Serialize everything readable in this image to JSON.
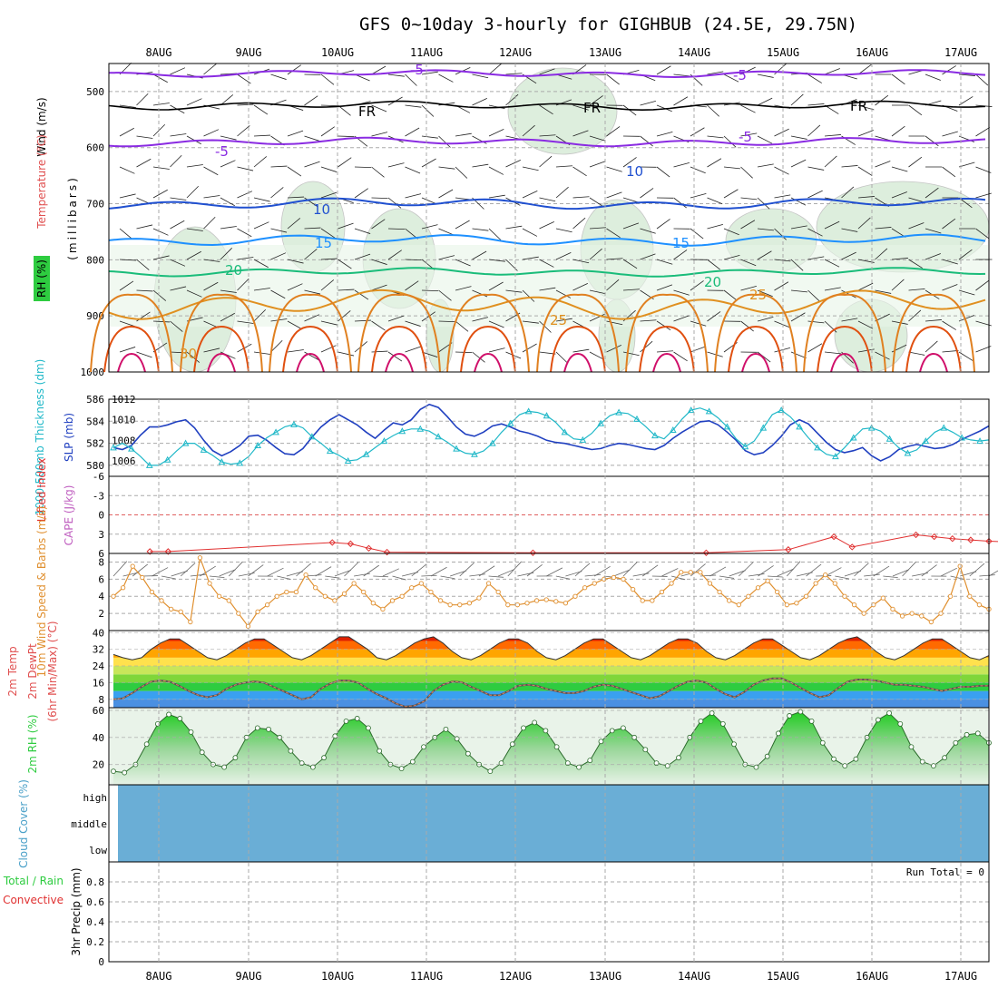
{
  "title": "GFS 0~10day 3-hourly for GIGHBUB (24.5E, 29.75N)",
  "dates": [
    "8AUG",
    "9AUG",
    "10AUG",
    "11AUG",
    "12AUG",
    "13AUG",
    "14AUG",
    "15AUG",
    "16AUG",
    "17AUG"
  ],
  "colors": {
    "temp_label": "#e05050",
    "wind_label": "#000000",
    "rh_label": "#2ecc40",
    "thickness": "#20b8c8",
    "slp": "#2040c0",
    "cape": "#c060c0",
    "lifted": "#e03030",
    "wind10": "#e09030",
    "cloud_fill": "#6aaed6",
    "rh2m": "#2ecc40",
    "precip_total": "#2ecc40",
    "precip_conv": "#e03030"
  },
  "chart_data": [
    {
      "panel": "upper-air",
      "type": "heatmap",
      "labels": {
        "wind": "Wind (m/s)",
        "temp": "Temperature (°C)",
        "rh": "RH (%)",
        "pressure": "(millibars)"
      },
      "y_ticks": [
        "500",
        "600",
        "700",
        "800",
        "900",
        "1000"
      ],
      "ylim": [
        1000,
        450
      ],
      "isotherm_labels": [
        {
          "text": "-5",
          "level": "~470"
        },
        {
          "text": "FR",
          "level": "~525"
        },
        {
          "text": "-5",
          "level": "~585"
        },
        {
          "text": "10",
          "level": "~700"
        },
        {
          "text": "15",
          "level": "~765"
        },
        {
          "text": "20",
          "level": "~815"
        },
        {
          "text": "25",
          "level": "~870"
        },
        {
          "text": "30",
          "level": "RH"
        }
      ]
    },
    {
      "panel": "thickness-slp",
      "type": "line",
      "labels": {
        "thickness": "1000-500mb Thickness (dm)",
        "slp": "SLP (mb)"
      },
      "left_ticks": [
        "580",
        "582",
        "584",
        "586"
      ],
      "right_ticks": [
        "1006",
        "1008",
        "1010",
        "1012"
      ],
      "ylim_thickness": [
        579,
        586
      ],
      "ylim_slp": [
        1004.5,
        1012
      ],
      "series": [
        {
          "name": "1000-500mb Thickness (dm)",
          "values": [
            581.6,
            582,
            581.5,
            580.8,
            580,
            580,
            580.5,
            581.3,
            582,
            582,
            581.4,
            580.9,
            580.3,
            580.1,
            580.2,
            580.8,
            581.8,
            582.5,
            583,
            583.5,
            583.7,
            583.4,
            582.6,
            582,
            581.3,
            580.9,
            580.4,
            580.5,
            581,
            581.6,
            582.2,
            582.7,
            583.1,
            583.3,
            583.3,
            583.1,
            582.6,
            582.1,
            581.5,
            581.1,
            581,
            581.3,
            582,
            583,
            583.8,
            584.6,
            584.9,
            584.8,
            584.5,
            583.9,
            583,
            582.4,
            582.3,
            582.9,
            583.8,
            584.5,
            584.8,
            584.7,
            584.2,
            583.5,
            582.7,
            582.4,
            583.2,
            584.2,
            585,
            585.2,
            584.9,
            584.3,
            583.5,
            582.4,
            581.7,
            582.2,
            583.4,
            584.6,
            585,
            584.4,
            583.5,
            582.5,
            581.6,
            581,
            580.8,
            581.6,
            582.5,
            583.3,
            583.4,
            583.1,
            582.4,
            581.6,
            581.1,
            581.4,
            582.2,
            583,
            583.4,
            583,
            582.5,
            582.3,
            582.2,
            582.3
          ]
        },
        {
          "name": "SLP (mb)",
          "values": [
            1007.3,
            1007.1,
            1007.5,
            1008.5,
            1009.3,
            1009.3,
            1009.5,
            1009.8,
            1010,
            1009.2,
            1008,
            1007,
            1006.5,
            1006.9,
            1007.5,
            1008.4,
            1008.5,
            1008,
            1007.3,
            1006.7,
            1006.6,
            1007.2,
            1008.3,
            1009.3,
            1010,
            1010.5,
            1010,
            1009.5,
            1008.8,
            1008.2,
            1009,
            1009.7,
            1009.5,
            1010,
            1011,
            1011.5,
            1011.2,
            1010.3,
            1009.3,
            1008.6,
            1008.4,
            1008.8,
            1009.4,
            1009.6,
            1009.3,
            1008.9,
            1008.7,
            1008.4,
            1008,
            1007.8,
            1007.7,
            1007.5,
            1007.3,
            1007.1,
            1007.2,
            1007.5,
            1007.7,
            1007.6,
            1007.4,
            1007.2,
            1007.1,
            1007.5,
            1008.2,
            1008.8,
            1009.3,
            1009.8,
            1009.9,
            1009.5,
            1008.8,
            1008,
            1007,
            1006.6,
            1006.8,
            1007.5,
            1008.4,
            1009.5,
            1010,
            1009.6,
            1008.7,
            1007.8,
            1007.1,
            1006.8,
            1007,
            1007.3,
            1006.5,
            1006,
            1006.4,
            1007.1,
            1007.4,
            1007.6,
            1007.4,
            1007.2,
            1007.3,
            1007.6,
            1008.1,
            1008.5,
            1008.9,
            1009.4
          ]
        }
      ]
    },
    {
      "panel": "cape-li",
      "type": "line",
      "labels": {
        "li": "Lifted Index",
        "cape": "CAPE (J/kg)"
      },
      "y_ticks": [
        "-6",
        "-3",
        "0",
        "3",
        "6"
      ],
      "ylim": [
        6,
        -6
      ],
      "series": [
        {
          "name": "Lifted Index",
          "points": [
            [
              4,
              5.7
            ],
            [
              6,
              5.7
            ],
            [
              24,
              4.3
            ],
            [
              26,
              4.5
            ],
            [
              28,
              5.2
            ],
            [
              30,
              5.8
            ],
            [
              46,
              5.9
            ],
            [
              65,
              5.9
            ],
            [
              74,
              5.4
            ],
            [
              79,
              3.4
            ],
            [
              81,
              5
            ],
            [
              88,
              3.1
            ],
            [
              90,
              3.4
            ],
            [
              92,
              3.7
            ],
            [
              94,
              3.9
            ],
            [
              96,
              4.1
            ],
            [
              98,
              4.2
            ],
            [
              100,
              5
            ],
            [
              102,
              4.5
            ],
            [
              104,
              5.8
            ]
          ]
        }
      ]
    },
    {
      "panel": "wind10m",
      "type": "line",
      "labels": {
        "wind": "10m Wind Speed & Barbs (m/s)"
      },
      "y_ticks": [
        "2",
        "4",
        "6",
        "8"
      ],
      "ylim": [
        0,
        9
      ],
      "series": [
        {
          "name": "10m Wind Speed",
          "values": [
            4,
            5,
            7.5,
            6.2,
            4.5,
            3.5,
            2.5,
            2.2,
            1,
            8.5,
            5.5,
            4,
            3.5,
            2,
            0.5,
            2.2,
            3,
            4,
            4.5,
            4.5,
            6.5,
            5,
            4,
            3.5,
            4.3,
            5.5,
            4.5,
            3.2,
            2.5,
            3.5,
            4,
            5,
            5.5,
            4.5,
            3.5,
            3,
            3,
            3.2,
            3.8,
            5.5,
            4.5,
            3,
            3,
            3.2,
            3.5,
            3.6,
            3.4,
            3.2,
            4,
            5,
            5.5,
            6,
            6.2,
            6,
            4.8,
            3.5,
            3.5,
            4.5,
            5.5,
            6.8,
            6.8,
            6.8,
            5.5,
            4.5,
            3.5,
            3,
            4,
            5,
            5.8,
            4.5,
            3,
            3.2,
            4,
            5.5,
            6.5,
            5.5,
            4,
            3,
            2,
            3,
            3.8,
            2.5,
            1.7,
            2,
            1.7,
            1,
            2,
            4,
            7.5,
            4,
            3,
            2.5
          ]
        }
      ]
    },
    {
      "panel": "temp2m",
      "type": "area",
      "labels": {
        "temp": "2m Temp",
        "dewpt": "2m DewPt",
        "range": "(6hr Min/Max) (°C)"
      },
      "y_ticks": [
        "8",
        "16",
        "24",
        "32",
        "40"
      ],
      "ylim": [
        4,
        41
      ],
      "series": [
        {
          "name": "2m Temp",
          "values": [
            29.5,
            28,
            27,
            28,
            32,
            35,
            37,
            37,
            34,
            31,
            28,
            27,
            29,
            32,
            35,
            37,
            37,
            34,
            31,
            28,
            27,
            29,
            32,
            35,
            38,
            38,
            35,
            32,
            28,
            27,
            29,
            32,
            35,
            37,
            38,
            35,
            31,
            28,
            27,
            29,
            32,
            35,
            37,
            37,
            35,
            31,
            28,
            27,
            29,
            32,
            35,
            37,
            37,
            34,
            31,
            28,
            27,
            29,
            32,
            35,
            37,
            37,
            35,
            31,
            28,
            27,
            29,
            32,
            35,
            37,
            37,
            34,
            31,
            28,
            27,
            29,
            32,
            35,
            37,
            38,
            35,
            31,
            28,
            27,
            29,
            32,
            35,
            37,
            37,
            34,
            31,
            28,
            27,
            29
          ]
        },
        {
          "name": "2m DewPt",
          "values": [
            8,
            8.5,
            11,
            14,
            16.5,
            17,
            16.5,
            14.5,
            12,
            10,
            9,
            10,
            13,
            15,
            16,
            16.5,
            16,
            14,
            12,
            10,
            8,
            9,
            13,
            15.5,
            17,
            17,
            16,
            13,
            10.5,
            8.5,
            6,
            4.5,
            5,
            7,
            12,
            15,
            16.5,
            16.2,
            14,
            12,
            10,
            10,
            12,
            14.5,
            15,
            14.5,
            13,
            12,
            11,
            11,
            12,
            14,
            15,
            14.5,
            13,
            11.5,
            10,
            8.5,
            9.5,
            12,
            14.5,
            16.5,
            17,
            16,
            13,
            10.5,
            9,
            11.5,
            15,
            17,
            18,
            18,
            16,
            13.5,
            11,
            9,
            10,
            13.5,
            16.5,
            17.5,
            17.5,
            17,
            16,
            15,
            15,
            14.5,
            14,
            13,
            12,
            13,
            14,
            14,
            14.5,
            14.5
          ]
        }
      ]
    },
    {
      "panel": "rh2m",
      "type": "area",
      "labels": {
        "rh": "2m RH (%)"
      },
      "y_ticks": [
        "20",
        "40",
        "60"
      ],
      "ylim": [
        5,
        62
      ],
      "series": [
        {
          "name": "2m RH",
          "values": [
            15,
            14,
            20,
            35,
            50,
            57,
            54,
            44,
            29,
            20,
            18,
            25,
            40,
            47,
            46,
            40,
            30,
            21,
            18,
            25,
            41,
            52,
            54,
            47,
            30,
            20,
            17,
            22,
            33,
            40,
            46,
            39,
            28,
            20,
            15,
            21,
            35,
            47,
            51,
            45,
            33,
            21,
            18,
            23,
            37,
            45,
            47,
            40,
            31,
            21,
            19,
            25,
            40,
            52,
            58,
            50,
            35,
            20,
            18,
            26,
            43,
            56,
            59,
            52,
            36,
            24,
            19,
            24,
            40,
            53,
            58,
            50,
            33,
            22,
            19,
            25,
            36,
            42,
            43,
            36
          ]
        }
      ]
    },
    {
      "panel": "cloud",
      "type": "area",
      "labels": {
        "cloud": "Cloud Cover (%)",
        "high": "high",
        "middle": "middle",
        "low": "low"
      }
    },
    {
      "panel": "precip",
      "type": "bar",
      "labels": {
        "precip": "3hr Precip (mm)",
        "total": "Total / Rain",
        "conv": "Convective",
        "run_total": "Run Total = 0"
      },
      "y_ticks": [
        "0",
        "0.2",
        "0.4",
        "0.6",
        "0.8"
      ],
      "ylim": [
        0,
        1
      ]
    }
  ]
}
